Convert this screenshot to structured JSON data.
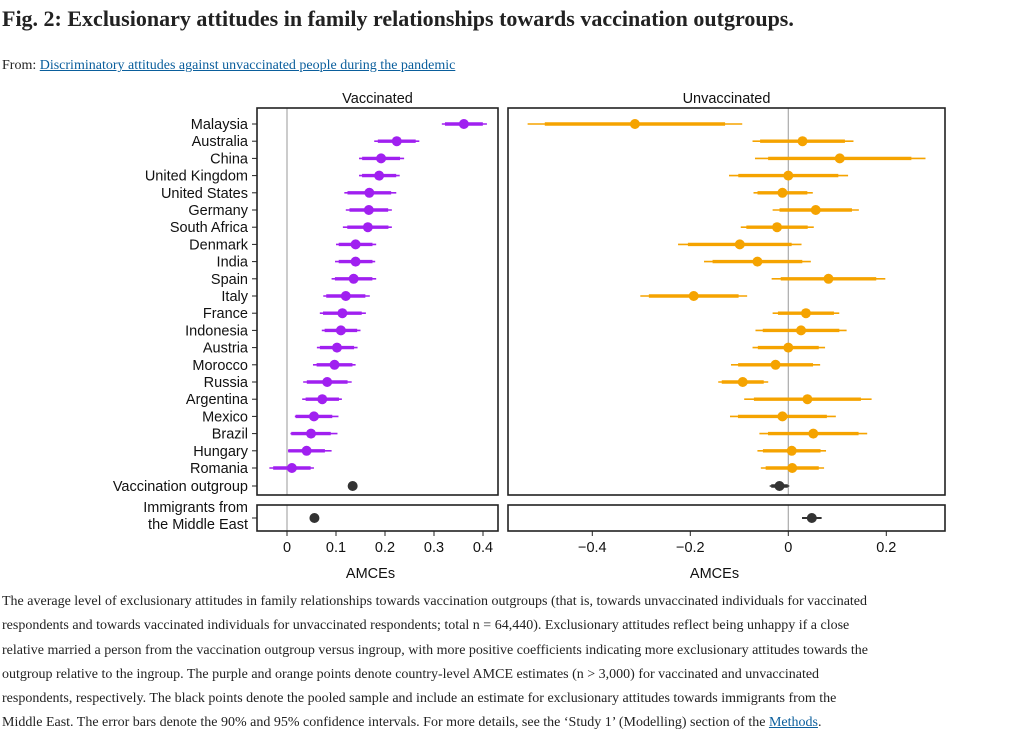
{
  "header": {
    "title": "Fig. 2: Exclusionary attitudes in family relationships towards vaccination outgroups.",
    "from_label": "From:",
    "source_link": "Discriminatory attitudes against unvaccinated people during the pandemic"
  },
  "chart_data": {
    "type": "scatter",
    "subtype": "coefficient-plot",
    "xlabel": "AMCEs",
    "colors": {
      "vaccinated": "#a020f0",
      "unvaccinated": "#f5a300",
      "pooled": "#333333",
      "zero_line": "#aaaaaa"
    },
    "categories": [
      "Malaysia",
      "Australia",
      "China",
      "United Kingdom",
      "United States",
      "Germany",
      "South Africa",
      "Denmark",
      "India",
      "Spain",
      "Italy",
      "France",
      "Indonesia",
      "Austria",
      "Morocco",
      "Russia",
      "Argentina",
      "Mexico",
      "Brazil",
      "Hungary",
      "Romania",
      "Vaccination outgroup"
    ],
    "extra_category": [
      "Immigrants from",
      "the Middle East"
    ],
    "panels": [
      {
        "name": "Vaccinated",
        "xlim": [
          -0.06,
          0.43
        ],
        "ticks": [
          0,
          0.1,
          0.2,
          0.3,
          0.4
        ],
        "tick_labels": [
          "0",
          "0.1",
          "0.2",
          "0.3",
          "0.4"
        ],
        "estimates": [
          0.361,
          0.224,
          0.192,
          0.188,
          0.168,
          0.167,
          0.165,
          0.14,
          0.14,
          0.136,
          0.12,
          0.113,
          0.11,
          0.102,
          0.097,
          0.082,
          0.072,
          0.055,
          0.049,
          0.04,
          0.01,
          0.134
        ],
        "ci95_low": [
          0.316,
          0.178,
          0.147,
          0.147,
          0.117,
          0.12,
          0.114,
          0.1,
          0.098,
          0.091,
          0.074,
          0.067,
          0.071,
          0.061,
          0.053,
          0.033,
          0.031,
          0.016,
          0.007,
          0.002,
          -0.036,
          0.126
        ],
        "ci95_high": [
          0.408,
          0.27,
          0.239,
          0.23,
          0.223,
          0.214,
          0.214,
          0.182,
          0.18,
          0.182,
          0.169,
          0.161,
          0.15,
          0.144,
          0.14,
          0.132,
          0.112,
          0.105,
          0.103,
          0.091,
          0.055,
          0.142
        ],
        "immigrants": {
          "estimate": 0.056,
          "ci95_low": 0.048,
          "ci95_high": 0.064
        }
      },
      {
        "name": "Unvaccinated",
        "xlim": [
          -0.573,
          0.32
        ],
        "ticks": [
          -0.4,
          -0.2,
          0,
          0.2
        ],
        "tick_labels": [
          "−0.4",
          "−0.2",
          "0",
          "0.2"
        ],
        "estimates": [
          -0.313,
          0.029,
          0.105,
          0.0,
          -0.012,
          0.056,
          -0.023,
          -0.099,
          -0.063,
          0.082,
          -0.193,
          0.036,
          0.026,
          0.0,
          -0.026,
          -0.093,
          0.039,
          -0.012,
          0.051,
          0.007,
          0.008,
          -0.018
        ],
        "ci95_low": [
          -0.532,
          -0.073,
          -0.068,
          -0.121,
          -0.071,
          -0.032,
          -0.097,
          -0.225,
          -0.172,
          -0.034,
          -0.302,
          -0.032,
          -0.067,
          -0.073,
          -0.117,
          -0.143,
          -0.09,
          -0.119,
          -0.059,
          -0.063,
          -0.056,
          -0.038
        ],
        "ci95_high": [
          -0.094,
          0.133,
          0.28,
          0.122,
          0.05,
          0.144,
          0.052,
          0.027,
          0.046,
          0.198,
          -0.084,
          0.104,
          0.119,
          0.075,
          0.065,
          -0.041,
          0.17,
          0.097,
          0.161,
          0.077,
          0.073,
          0.002
        ],
        "immigrants": {
          "estimate": 0.048,
          "ci95_low": 0.028,
          "ci95_high": 0.068
        }
      }
    ]
  },
  "caption": {
    "lines": [
      "The average level of exclusionary attitudes in family relationships towards vaccination outgroups (that is, towards unvaccinated individuals for vaccinated",
      "respondents and towards vaccinated individuals for unvaccinated respondents; total n = 64,440). Exclusionary attitudes reflect being unhappy if a close",
      "relative married a person from the vaccination outgroup versus ingroup, with more positive coefficients indicating more exclusionary attitudes towards the",
      "outgroup relative to the ingroup. The purple and orange points denote country-level AMCE estimates (n > 3,000) for vaccinated and unvaccinated",
      "respondents, respectively. The black points denote the pooled sample and include an estimate for exclusionary attitudes towards immigrants from the",
      "Middle East. The error bars denote the 90% and 95% confidence intervals. For more details, see the ‘Study 1’ (Modelling) section of the "
    ],
    "methods_link": "Methods",
    "end": "."
  }
}
